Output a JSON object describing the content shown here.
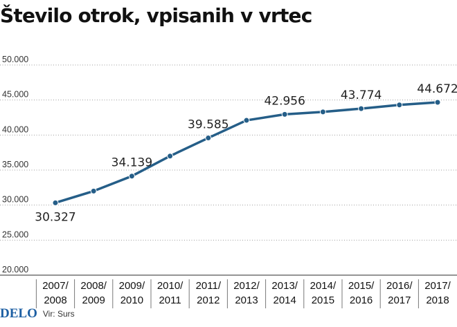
{
  "chart_data": {
    "type": "line",
    "title": "Število otrok, vpisanih v vrtec",
    "categories": [
      "2007/\n2008",
      "2008/\n2009",
      "2009/\n2010",
      "2010/\n2011",
      "2011/\n2012",
      "2012/\n2013",
      "2013/\n2014",
      "2014/\n2015",
      "2015/\n2016",
      "2016/\n2017",
      "2017/\n2018"
    ],
    "series": [
      {
        "values": [
          30327,
          32000,
          34139,
          37000,
          39585,
          42100,
          42956,
          43300,
          43774,
          44300,
          44672
        ]
      }
    ],
    "data_labels": [
      {
        "index": 0,
        "text": "30.327",
        "position": "below"
      },
      {
        "index": 2,
        "text": "34.139",
        "position": "above"
      },
      {
        "index": 4,
        "text": "39.585",
        "position": "above"
      },
      {
        "index": 6,
        "text": "42.956",
        "position": "above"
      },
      {
        "index": 8,
        "text": "43.774",
        "position": "above"
      },
      {
        "index": 10,
        "text": "44.672",
        "position": "above"
      }
    ],
    "y_ticks": [
      20000,
      25000,
      30000,
      35000,
      40000,
      45000,
      50000
    ],
    "y_tick_labels": [
      "20.000",
      "25.000",
      "30.000",
      "35.000",
      "40.000",
      "45.000",
      "50.000"
    ],
    "ylim": [
      20000,
      50000
    ],
    "grid": true,
    "line_color": "#255e88"
  },
  "footer": {
    "brand": "DELO",
    "source": "Vir: Surs"
  }
}
